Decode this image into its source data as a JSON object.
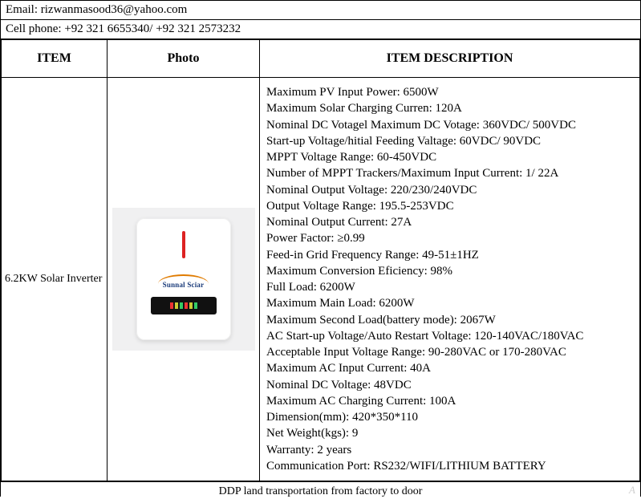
{
  "contact": {
    "email_label": "Email: ",
    "email": "rizwanmasood36@yahoo.com",
    "phone_label": "Cell phone: ",
    "phone": "+92 321 6655340/  +92 321 2573232"
  },
  "table": {
    "headers": {
      "item": "ITEM",
      "photo": "Photo",
      "desc": "ITEM DESCRIPTION"
    },
    "row": {
      "item": "6.2KW Solar Inverter",
      "brand": "Sunnal Sciar",
      "specs": [
        "Maximum PV Input Power: 6500W",
        "Maximum Solar Charging Curren: 120A",
        "Nominal DC Votagel Maximum DC Votage: 360VDC/ 500VDC",
        "Start-up Voltage/hitial Feeding Valtage: 60VDC/ 90VDC",
        "MPPT Voltage Range: 60-450VDC",
        "Number of MPPT Trackers/Maximum Input Current: 1/ 22A",
        "Nominal Output Voltage: 220/230/240VDC",
        "Output Voltage Range: 195.5-253VDC",
        "Nominal Output Current: 27A",
        "Power Factor: ≥0.99",
        "Feed-in Grid Frequency Range: 49-51±1HZ",
        "Maximum Conversion Eficiency: 98%",
        "Full Load: 6200W",
        "Maximum Main Load: 6200W",
        "Maximum Second Load(battery mode): 2067W",
        "AC Start-up Voltage/Auto Restart Voltage: 120-140VAC/180VAC",
        "Acceptable Input Voltage Range: 90-280VAC or 170-280VAC",
        "Maximum AC Input Current: 40A",
        "Nominal DC Voltage: 48VDC",
        "Maximum AC Charging Current: 100A",
        "Dimension(mm): 420*350*110",
        "Net Weight(kgs): 9",
        "Warranty: 2 years",
        "Communication Port: RS232/WIFI/LITHIUM BATTERY"
      ]
    }
  },
  "footer": "DDP land transportation from factory to door",
  "watermark": "A",
  "colors": {
    "border": "#000000",
    "text": "#000000",
    "photo_bg": "#f0f0f1",
    "device_bg": "#ffffff",
    "led": "#dd2222",
    "brand_text": "#1a3b7a",
    "brand_arc": "#e07b00",
    "panel_bg": "#111111"
  }
}
